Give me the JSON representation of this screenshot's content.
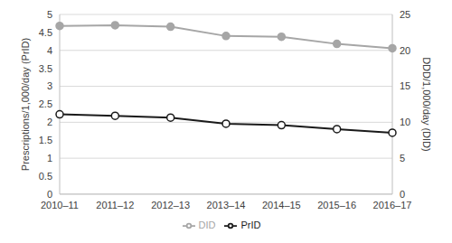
{
  "chart_data": {
    "type": "line",
    "categories": [
      "2010–11",
      "2011–12",
      "2012–13",
      "2013–14",
      "2014–15",
      "2015–16",
      "2016–17"
    ],
    "y_label": "Prescriptions/1,000/day (PrID)",
    "y2_label": "DDD/1,000/day (DID)",
    "series": [
      {
        "name": "PrID",
        "color": "#1a1a1a",
        "marker": "open circle",
        "values": [
          2.22,
          2.18,
          2.13,
          1.96,
          1.92,
          1.81,
          1.71
        ]
      },
      {
        "name": "DID",
        "color": "#a6a6a6",
        "marker": "circle",
        "axis": "y2",
        "values": [
          23.4,
          23.5,
          23.3,
          22.0,
          21.9,
          20.9,
          20.3
        ]
      }
    ],
    "ylim": [
      0,
      5
    ],
    "yticks": [
      0,
      0.5,
      1,
      1.5,
      2,
      2.5,
      3,
      3.5,
      4,
      4.5,
      5
    ],
    "y2lim": [
      0,
      25
    ],
    "y2ticks": [
      0,
      5,
      10,
      15,
      20,
      25
    ],
    "grid": true,
    "legend": "bottom"
  }
}
